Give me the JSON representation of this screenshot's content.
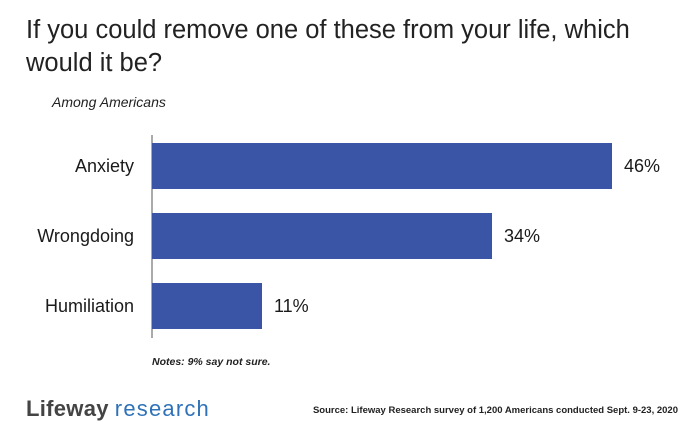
{
  "header": {
    "title": "If you could remove one of these from your life, which would it be?",
    "subtitle": "Among Americans"
  },
  "footer": {
    "note": "Notes: 9% say not sure.",
    "logo_part1": "Lifeway",
    "logo_part2": "research",
    "source": "Source: Lifeway Research survey of 1,200 Americans conducted Sept. 9-23, 2020"
  },
  "colors": {
    "bar": "#3a54a6",
    "axis": "#555555",
    "text": "#1a1a1a"
  },
  "chart_data": {
    "type": "bar",
    "orientation": "horizontal",
    "title": "If you could remove one of these from your life, which would it be?",
    "subtitle": "Among Americans",
    "categories": [
      "Anxiety",
      "Wrongdoing",
      "Humiliation"
    ],
    "values": [
      46,
      34,
      11
    ],
    "value_labels": [
      "46%",
      "34%",
      "11%"
    ],
    "unit": "%",
    "xlim": [
      0,
      55
    ],
    "grid": false,
    "legend": "none"
  }
}
